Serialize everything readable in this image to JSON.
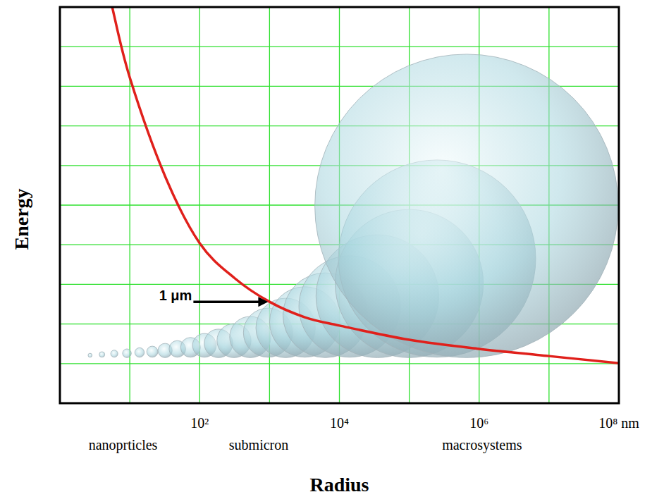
{
  "chart_data": {
    "type": "line",
    "x_label": "Radius",
    "y_label": "Energy",
    "log": "x",
    "grid": true,
    "tick_labels": "x",
    "xlim": [
      1,
      100000000
    ],
    "ylim": [
      0,
      10
    ],
    "xticks": [
      {
        "value": 100,
        "label": "10²"
      },
      {
        "value": 10000,
        "label": "10⁴"
      },
      {
        "value": 1000000,
        "label": "10⁶"
      },
      {
        "value": 100000000,
        "label": "10⁸ nm"
      }
    ],
    "yticks": [
      0,
      1,
      2,
      3,
      4,
      5,
      6,
      7,
      8,
      9,
      10
    ],
    "series": [
      {
        "type": "line",
        "color": "#e0201b",
        "x": [
          5.6,
          10,
          32,
          100,
          320,
          1000,
          3200,
          10000,
          100000,
          1000000,
          10000000,
          100000000
        ],
        "values": [
          10.0,
          8.22,
          5.73,
          4.04,
          3.15,
          2.56,
          2.17,
          1.96,
          1.6,
          1.37,
          1.19,
          1.01
        ]
      },
      {
        "type": "bubble",
        "color": "#a9d6df",
        "x": [
          2.7,
          4.0,
          6.0,
          9.1,
          13.8,
          21,
          32,
          48,
          74,
          117,
          186,
          310,
          530,
          950,
          1700,
          3200,
          6300,
          14000,
          35000,
          100000,
          250000,
          660000
        ],
        "values": [
          1.21,
          1.23,
          1.25,
          1.26,
          1.28,
          1.3,
          1.33,
          1.37,
          1.41,
          1.46,
          1.51,
          1.58,
          1.67,
          1.78,
          1.9,
          2.05,
          2.22,
          2.44,
          2.7,
          3.02,
          3.65,
          4.98
        ],
        "size": [
          0.05,
          0.07,
          0.09,
          0.11,
          0.12,
          0.14,
          0.18,
          0.21,
          0.25,
          0.3,
          0.36,
          0.43,
          0.52,
          0.62,
          0.75,
          0.89,
          1.07,
          1.28,
          1.55,
          1.87,
          2.49,
          3.83
        ]
      }
    ],
    "regions": [
      {
        "text": "nanoprticles",
        "x": 8
      },
      {
        "text": "submicron",
        "x": 700
      },
      {
        "text": "macrosystems",
        "x": 1100000
      }
    ],
    "annotations": [
      {
        "text": "1 μm",
        "x": 1000,
        "y": 2.56
      }
    ]
  }
}
